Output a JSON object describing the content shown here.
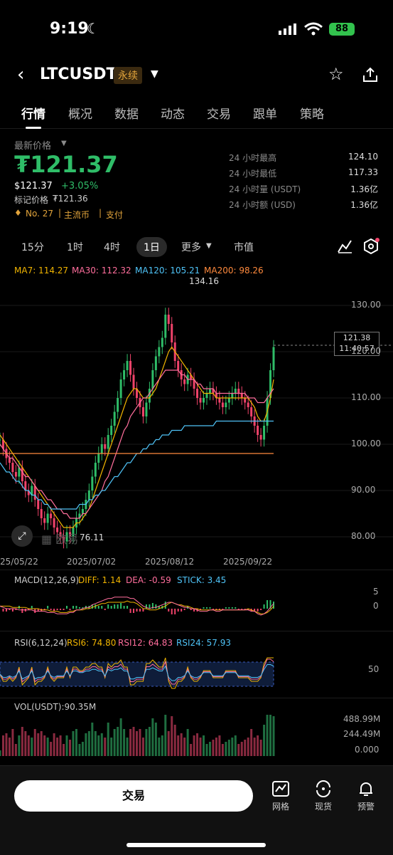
{
  "status": {
    "time": "9:19",
    "battery": "88"
  },
  "header": {
    "symbol": "LTCUSDT",
    "badge": "永续"
  },
  "tabs": [
    {
      "label": "行情",
      "active": true
    },
    {
      "label": "概况"
    },
    {
      "label": "数据"
    },
    {
      "label": "动态"
    },
    {
      "label": "交易"
    },
    {
      "label": "跟单"
    },
    {
      "label": "策略"
    }
  ],
  "price": {
    "label": "最新价格",
    "main": "₮121.37",
    "usd": "$121.37",
    "change": "+3.05%",
    "mark_label": "标记价格",
    "mark_value": "₮121.36",
    "rank": "No. 27",
    "tag1": "主流币",
    "tag2": "支付"
  },
  "stats": [
    {
      "label": "24 小时最高",
      "value": "124.10"
    },
    {
      "label": "24 小时最低",
      "value": "117.33"
    },
    {
      "label": "24 小时量 (USDT)",
      "value": "1.36亿"
    },
    {
      "label": "24 小时额 (USD)",
      "value": "1.36亿"
    }
  ],
  "timeframes": [
    "15分",
    "1时",
    "4时",
    "1日",
    "更多",
    "市值"
  ],
  "ma_legend": [
    {
      "text": "MA7: 114.27",
      "color": "#f0b400"
    },
    {
      "text": "MA30: 112.32",
      "color": "#ff6e9c"
    },
    {
      "text": "MA120: 105.21",
      "color": "#4fc3f7"
    },
    {
      "text": "MA200: 98.26",
      "color": "#ff8a3d"
    }
  ],
  "chart_data": {
    "type": "line",
    "x_ticks": [
      "25/05/22",
      "2025/07/02",
      "2025/08/12",
      "2025/09/22"
    ],
    "y_ticks": [
      "130.00",
      "120.00",
      "110.00",
      "100.00",
      "90.00",
      "80.00"
    ],
    "ylim": [
      76,
      136
    ],
    "last_price": "121.38",
    "countdown": "11:40:57",
    "high_label": "134.16",
    "low_label": "76.11",
    "close": [
      101,
      99,
      97,
      96,
      94,
      93,
      95,
      92,
      90,
      89,
      91,
      88,
      86,
      84,
      83,
      85,
      84,
      82,
      81,
      80,
      79,
      81,
      80,
      82,
      84,
      85,
      86,
      88,
      90,
      93,
      96,
      98,
      100,
      99,
      102,
      104,
      107,
      110,
      114,
      116,
      118,
      115,
      112,
      110,
      108,
      106,
      109,
      112,
      116,
      119,
      121,
      123,
      128,
      126,
      122,
      118,
      116,
      114,
      113,
      115,
      114,
      112,
      110,
      109,
      110,
      111,
      112,
      111,
      110,
      109,
      108,
      109,
      110,
      111,
      112,
      111,
      110,
      109,
      108,
      106,
      104,
      102,
      101,
      104,
      110,
      116,
      121
    ],
    "ma7": [
      102,
      101,
      100,
      99,
      98,
      97,
      96,
      95,
      94,
      93,
      92,
      91,
      90,
      89,
      88,
      87,
      86,
      85,
      84,
      83,
      82,
      82,
      82,
      82,
      83,
      83,
      84,
      85,
      86,
      88,
      90,
      92,
      94,
      96,
      98,
      100,
      102,
      104,
      106,
      108,
      110,
      111,
      112,
      112,
      111,
      110,
      110,
      110,
      111,
      112,
      114,
      116,
      118,
      120,
      121,
      120,
      119,
      118,
      117,
      116,
      115,
      114,
      113,
      112,
      111,
      111,
      111,
      111,
      110,
      110,
      110,
      110,
      110,
      110,
      110,
      110,
      110,
      110,
      110,
      109,
      108,
      106,
      105,
      105,
      107,
      110,
      114
    ],
    "ma30": [
      100,
      99,
      98,
      97,
      97,
      96,
      95,
      94,
      93,
      93,
      92,
      91,
      90,
      90,
      89,
      88,
      88,
      87,
      86,
      86,
      85,
      85,
      84,
      84,
      84,
      84,
      85,
      85,
      86,
      87,
      88,
      89,
      90,
      92,
      93,
      95,
      97,
      99,
      101,
      103,
      104,
      106,
      107,
      108,
      109,
      110,
      110,
      111,
      112,
      113,
      114,
      115,
      116,
      116,
      116,
      116,
      116,
      115,
      115,
      114,
      114,
      114,
      113,
      113,
      112,
      112,
      112,
      112,
      111,
      111,
      111,
      111,
      111,
      111,
      111,
      111,
      111,
      111,
      110,
      110,
      110,
      109,
      109,
      109,
      110,
      111,
      112
    ],
    "ma120": [
      96,
      95,
      94,
      94,
      93,
      92,
      92,
      91,
      90,
      90,
      89,
      89,
      88,
      88,
      87,
      87,
      86,
      86,
      86,
      86,
      86,
      86,
      86,
      86,
      86,
      87,
      87,
      87,
      88,
      88,
      89,
      89,
      90,
      90,
      91,
      92,
      93,
      93,
      94,
      95,
      96,
      96,
      97,
      98,
      98,
      99,
      99,
      100,
      100,
      101,
      101,
      102,
      102,
      102,
      103,
      103,
      103,
      103,
      104,
      104,
      104,
      104,
      104,
      104,
      104,
      104,
      104,
      104,
      105,
      105,
      105,
      105,
      105,
      105,
      105,
      105,
      105,
      105,
      105,
      105,
      105,
      105,
      105,
      105,
      105,
      105,
      105
    ],
    "ma200": [
      98,
      98,
      98,
      98,
      98,
      98,
      98,
      98,
      98,
      98,
      98,
      98,
      98,
      98,
      98,
      98,
      98,
      98,
      98,
      98,
      98,
      98,
      98,
      98,
      98,
      98,
      98,
      98,
      98,
      98,
      98,
      98,
      98,
      98,
      98,
      98,
      98,
      98,
      98,
      98,
      98,
      98,
      98,
      98,
      98,
      98,
      98,
      98,
      98,
      98,
      98,
      98,
      98,
      98,
      98,
      98,
      98,
      98,
      98,
      98,
      98,
      98,
      98,
      98,
      98,
      98,
      98,
      98,
      98,
      98,
      98,
      98,
      98,
      98,
      98,
      98,
      98,
      98,
      98,
      98,
      98,
      98,
      98,
      98,
      98,
      98,
      98
    ]
  },
  "macd": {
    "label": "MACD(12,26,9)",
    "diff": "DIFF: 1.14",
    "dea": "DEA: -0.59",
    "stick": "STICK: 3.45",
    "tick_top": "5",
    "tick_mid": "0"
  },
  "rsi": {
    "label": "RSI(6,12,24)",
    "rsi6": "RSI6: 74.80",
    "rsi12": "RSI12: 64.83",
    "rsi24": "RSI24: 57.93",
    "tick": "50"
  },
  "vol": {
    "label": "VOL(USDT):90.35M",
    "t1": "488.99M",
    "t2": "244.49M",
    "t3": "0.000"
  },
  "bottom": {
    "trade": "交易",
    "grid": "网格",
    "spot": "现货",
    "alert": "预警"
  },
  "colors": {
    "up": "#2fbd68",
    "down": "#f0436a",
    "accent": "#e2a43b"
  }
}
